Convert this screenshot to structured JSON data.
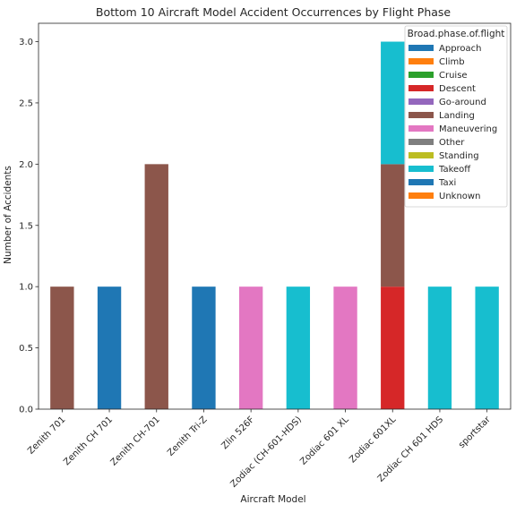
{
  "chart_data": {
    "type": "bar",
    "stacked": true,
    "title": "Bottom 10 Aircraft Model Accident Occurrences by Flight Phase",
    "xlabel": "Aircraft Model",
    "ylabel": "Number of Accidents",
    "ylim": [
      0,
      3.15
    ],
    "yticks": [
      "0.0",
      "0.5",
      "1.0",
      "1.5",
      "2.0",
      "2.5",
      "3.0"
    ],
    "ytick_values": [
      0,
      0.5,
      1.0,
      1.5,
      2.0,
      2.5,
      3.0
    ],
    "categories": [
      "Zenith 701",
      "Zenith CH 701",
      "Zenith CH-701",
      "Zenith Tri-Z",
      "Zlin 526F",
      "Zodiac (CH-601-HDS)",
      "Zodiac 601 XL",
      "Zodiac 601XL",
      "Zodiac CH 601 HDS",
      "sportstar"
    ],
    "legend_title": "Broad.phase.of.flight",
    "legend_position": "top-right",
    "grid": false,
    "series": [
      {
        "name": "Approach",
        "color": "#1f77b4",
        "values": [
          0,
          0,
          0,
          0,
          0,
          0,
          0,
          0,
          0,
          0
        ]
      },
      {
        "name": "Climb",
        "color": "#ff7f0e",
        "values": [
          0,
          0,
          0,
          0,
          0,
          0,
          0,
          0,
          0,
          0
        ]
      },
      {
        "name": "Cruise",
        "color": "#2ca02c",
        "values": [
          0,
          0,
          0,
          0,
          0,
          0,
          0,
          0,
          0,
          0
        ]
      },
      {
        "name": "Descent",
        "color": "#d62728",
        "values": [
          0,
          0,
          0,
          0,
          0,
          0,
          0,
          1,
          0,
          0
        ]
      },
      {
        "name": "Go-around",
        "color": "#9467bd",
        "values": [
          0,
          0,
          0,
          0,
          0,
          0,
          0,
          0,
          0,
          0
        ]
      },
      {
        "name": "Landing",
        "color": "#8c564b",
        "values": [
          1,
          0,
          2,
          0,
          0,
          0,
          0,
          1,
          0,
          0
        ]
      },
      {
        "name": "Maneuvering",
        "color": "#e377c2",
        "values": [
          0,
          0,
          0,
          0,
          1,
          0,
          1,
          0,
          0,
          0
        ]
      },
      {
        "name": "Other",
        "color": "#7f7f7f",
        "values": [
          0,
          0,
          0,
          0,
          0,
          0,
          0,
          0,
          0,
          0
        ]
      },
      {
        "name": "Standing",
        "color": "#bcbd22",
        "values": [
          0,
          0,
          0,
          0,
          0,
          0,
          0,
          0,
          0,
          0
        ]
      },
      {
        "name": "Takeoff",
        "color": "#17becf",
        "values": [
          0,
          0,
          0,
          0,
          0,
          1,
          0,
          1,
          1,
          1
        ]
      },
      {
        "name": "Taxi",
        "color": "#1f77b4",
        "values": [
          0,
          1,
          0,
          1,
          0,
          0,
          0,
          0,
          0,
          0
        ]
      },
      {
        "name": "Unknown",
        "color": "#ff7f0e",
        "values": [
          0,
          0,
          0,
          0,
          0,
          0,
          0,
          0,
          0,
          0
        ]
      }
    ]
  }
}
